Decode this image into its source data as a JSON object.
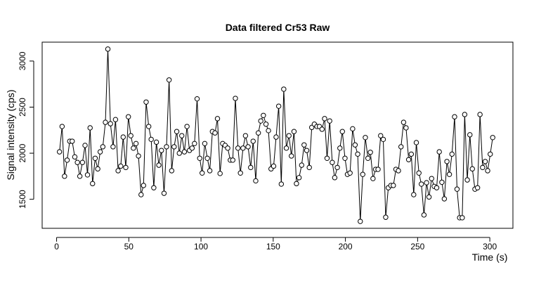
{
  "chart_data": {
    "type": "line",
    "title": "Data filtered Cr53 Raw",
    "x_label": "Time (s)",
    "y_label": "Signal intensity (cps)",
    "x": [
      2.0,
      3.8,
      5.5,
      7.3,
      9.1,
      10.8,
      12.6,
      14.4,
      16.1,
      17.9,
      19.7,
      21.4,
      23.2,
      24.9,
      26.7,
      28.5,
      30.2,
      32.0,
      33.8,
      35.5,
      37.3,
      39.1,
      40.8,
      42.6,
      44.4,
      46.1,
      47.9,
      49.7,
      51.4,
      53.2,
      55.0,
      56.7,
      58.5,
      60.2,
      62.0,
      63.8,
      65.5,
      67.3,
      69.1,
      70.8,
      72.6,
      74.4,
      76.1,
      77.9,
      79.7,
      81.4,
      83.2,
      85.0,
      86.7,
      88.5,
      90.3,
      92.0,
      93.8,
      95.5,
      97.3,
      99.1,
      100.8,
      102.6,
      104.4,
      106.1,
      107.9,
      109.7,
      111.4,
      113.2,
      115.0,
      116.7,
      118.5,
      120.3,
      122.0,
      123.8,
      125.6,
      127.3,
      129.1,
      130.8,
      132.6,
      134.4,
      136.1,
      137.9,
      139.7,
      141.4,
      143.2,
      145.0,
      146.7,
      148.5,
      150.3,
      152.0,
      153.8,
      155.6,
      157.3,
      159.1,
      160.9,
      162.6,
      164.4,
      166.1,
      167.9,
      169.7,
      171.4,
      173.2,
      175.0,
      176.7,
      178.5,
      180.3,
      182.0,
      183.8,
      185.6,
      187.3,
      189.1,
      190.9,
      192.6,
      194.4,
      196.2,
      197.9,
      199.7,
      201.4,
      203.2,
      205.0,
      206.7,
      208.5,
      210.3,
      212.0,
      213.8,
      215.6,
      217.3,
      219.1,
      220.9,
      222.6,
      224.4,
      226.2,
      227.9,
      229.7,
      231.5,
      233.2,
      235.0,
      236.7,
      238.5,
      240.3,
      242.0,
      243.8,
      245.6,
      247.3,
      249.1,
      250.9,
      252.6,
      254.4,
      256.2,
      257.9,
      259.7,
      261.5,
      263.2,
      265.0,
      266.8,
      268.5,
      270.3,
      272.0,
      273.8,
      275.6,
      277.3,
      279.1,
      280.9,
      282.6,
      284.4,
      286.2,
      287.9,
      289.7,
      291.5,
      293.2,
      295.0,
      296.8,
      298.5,
      300.3,
      302.0
    ],
    "series": [
      {
        "color": "#000000",
        "values": [
          2015,
          2290,
          1750,
          1925,
          2130,
          2130,
          1960,
          1900,
          1750,
          1900,
          2085,
          1765,
          2275,
          1670,
          1945,
          1830,
          2015,
          2070,
          2335,
          3130,
          2320,
          2070,
          2365,
          1810,
          1860,
          2175,
          1845,
          2395,
          2190,
          2055,
          2105,
          1970,
          1550,
          1650,
          2555,
          2290,
          2150,
          1625,
          2120,
          1870,
          2030,
          1565,
          2070,
          2795,
          1810,
          2070,
          2235,
          2000,
          2190,
          2015,
          2290,
          2030,
          2055,
          2105,
          2590,
          1945,
          1785,
          2105,
          1945,
          1810,
          2235,
          2220,
          2375,
          1780,
          2105,
          2085,
          2055,
          1925,
          1925,
          2595,
          2055,
          1785,
          2055,
          2190,
          2070,
          1845,
          2130,
          1700,
          2220,
          2350,
          2410,
          2315,
          2245,
          1830,
          1860,
          2175,
          2510,
          1665,
          2695,
          2055,
          2190,
          1970,
          2235,
          1670,
          1735,
          1870,
          2090,
          2030,
          1845,
          2280,
          2315,
          2290,
          2290,
          2260,
          2375,
          1945,
          2350,
          1900,
          1735,
          1845,
          2055,
          2235,
          1945,
          1770,
          1785,
          2265,
          2090,
          1990,
          1260,
          1770,
          2170,
          1945,
          2010,
          1725,
          1825,
          1825,
          2190,
          2150,
          1305,
          1625,
          1650,
          1650,
          1825,
          1810,
          2070,
          2335,
          2275,
          1930,
          1990,
          1550,
          2115,
          1785,
          1665,
          1330,
          1680,
          1525,
          1725,
          1640,
          1625,
          2015,
          1685,
          1505,
          1910,
          1770,
          1990,
          2395,
          1610,
          1300,
          1300,
          2420,
          1710,
          2200,
          1830,
          1610,
          1625,
          2420,
          1845,
          1910,
          1810,
          1990,
          2170
        ]
      }
    ],
    "xlim": [
      -10,
      316
    ],
    "ylim": [
      1185,
      3205
    ],
    "xticks": [
      0,
      50,
      100,
      150,
      200,
      250,
      300
    ],
    "yticks": [
      1500,
      2000,
      2500,
      3000
    ]
  }
}
